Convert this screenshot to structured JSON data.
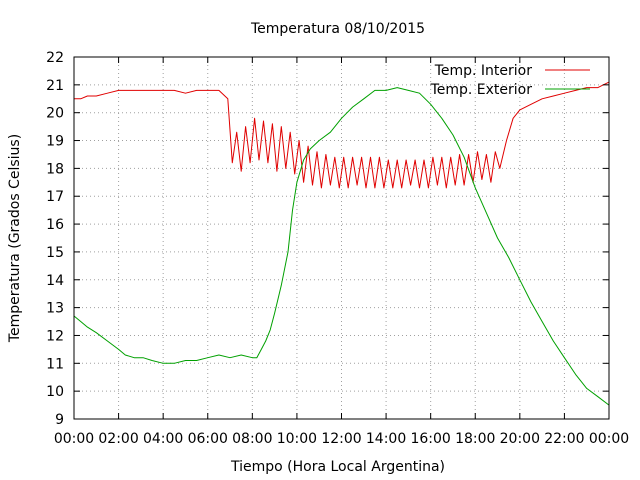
{
  "chart_data": {
    "type": "line",
    "title": "Temperatura 08/10/2015",
    "xlabel": "Tiempo (Hora Local Argentina)",
    "ylabel": "Temperatura (Grados Celsius)",
    "xlim": [
      0,
      24
    ],
    "ylim": [
      9,
      22
    ],
    "grid": true,
    "legend_position": "top-right",
    "x_tick_labels": [
      "00:00",
      "02:00",
      "04:00",
      "06:00",
      "08:00",
      "10:00",
      "12:00",
      "14:00",
      "16:00",
      "18:00",
      "20:00",
      "22:00",
      "00:00"
    ],
    "y_tick_labels": [
      "9",
      "10",
      "11",
      "12",
      "13",
      "14",
      "15",
      "16",
      "17",
      "18",
      "19",
      "20",
      "21",
      "22"
    ],
    "series": [
      {
        "name": "Temp. Interior",
        "color": "#e00000",
        "x": [
          0,
          0.3,
          0.6,
          1,
          1.5,
          2,
          2.5,
          3,
          3.5,
          4,
          4.5,
          5,
          5.5,
          6,
          6.5,
          6.9,
          7.1,
          7.3,
          7.5,
          7.7,
          7.9,
          8.1,
          8.3,
          8.5,
          8.7,
          8.9,
          9.1,
          9.3,
          9.5,
          9.7,
          9.9,
          10.1,
          10.3,
          10.5,
          10.7,
          10.9,
          11.1,
          11.3,
          11.5,
          11.7,
          11.9,
          12.1,
          12.3,
          12.5,
          12.7,
          12.9,
          13.1,
          13.3,
          13.5,
          13.7,
          13.9,
          14.1,
          14.3,
          14.5,
          14.7,
          14.9,
          15.1,
          15.3,
          15.5,
          15.7,
          15.9,
          16.1,
          16.3,
          16.5,
          16.7,
          16.9,
          17.1,
          17.3,
          17.5,
          17.7,
          17.9,
          18.1,
          18.3,
          18.5,
          18.7,
          18.9,
          19.1,
          19.4,
          19.7,
          20,
          20.5,
          21,
          21.5,
          22,
          22.5,
          23,
          23.5,
          24
        ],
        "y": [
          20.5,
          20.5,
          20.6,
          20.6,
          20.7,
          20.8,
          20.8,
          20.8,
          20.8,
          20.8,
          20.8,
          20.7,
          20.8,
          20.8,
          20.8,
          20.5,
          18.2,
          19.3,
          17.9,
          19.5,
          18.2,
          19.8,
          18.3,
          19.7,
          18.2,
          19.6,
          17.9,
          19.5,
          18.0,
          19.3,
          17.8,
          19.0,
          17.5,
          18.8,
          17.4,
          18.6,
          17.3,
          18.5,
          17.4,
          18.4,
          17.3,
          18.4,
          17.3,
          18.4,
          17.4,
          18.4,
          17.3,
          18.4,
          17.3,
          18.4,
          17.3,
          18.3,
          17.3,
          18.3,
          17.3,
          18.3,
          17.4,
          18.3,
          17.3,
          18.3,
          17.3,
          18.4,
          17.4,
          18.4,
          17.3,
          18.4,
          17.4,
          18.5,
          17.4,
          18.5,
          17.5,
          18.6,
          17.6,
          18.5,
          17.5,
          18.6,
          18.0,
          19.0,
          19.8,
          20.1,
          20.3,
          20.5,
          20.6,
          20.7,
          20.8,
          20.9,
          20.9,
          21.1
        ]
      },
      {
        "name": "Temp. Exterior",
        "color": "#00a000",
        "x": [
          0,
          0.3,
          0.6,
          1,
          1.5,
          2,
          2.3,
          2.7,
          3.1,
          3.5,
          4,
          4.5,
          5,
          5.5,
          6,
          6.5,
          7,
          7.5,
          8,
          8.2,
          8.4,
          8.6,
          8.8,
          9,
          9.3,
          9.6,
          9.8,
          10,
          10.3,
          10.6,
          11,
          11.5,
          12,
          12.5,
          13,
          13.5,
          14,
          14.5,
          15,
          15.5,
          16,
          16.5,
          17,
          17.5,
          18,
          18.5,
          19,
          19.5,
          20,
          20.5,
          21,
          21.5,
          22,
          22.5,
          23,
          23.5,
          24
        ],
        "y": [
          12.7,
          12.5,
          12.3,
          12.1,
          11.8,
          11.5,
          11.3,
          11.2,
          11.2,
          11.1,
          11.0,
          11.0,
          11.1,
          11.1,
          11.2,
          11.3,
          11.2,
          11.3,
          11.2,
          11.2,
          11.5,
          11.8,
          12.2,
          12.8,
          13.8,
          15.0,
          16.5,
          17.5,
          18.3,
          18.7,
          19.0,
          19.3,
          19.8,
          20.2,
          20.5,
          20.8,
          20.8,
          20.9,
          20.8,
          20.7,
          20.3,
          19.8,
          19.2,
          18.4,
          17.3,
          16.4,
          15.5,
          14.8,
          14.0,
          13.2,
          12.5,
          11.8,
          11.2,
          10.6,
          10.1,
          9.8,
          9.5
        ]
      }
    ]
  }
}
